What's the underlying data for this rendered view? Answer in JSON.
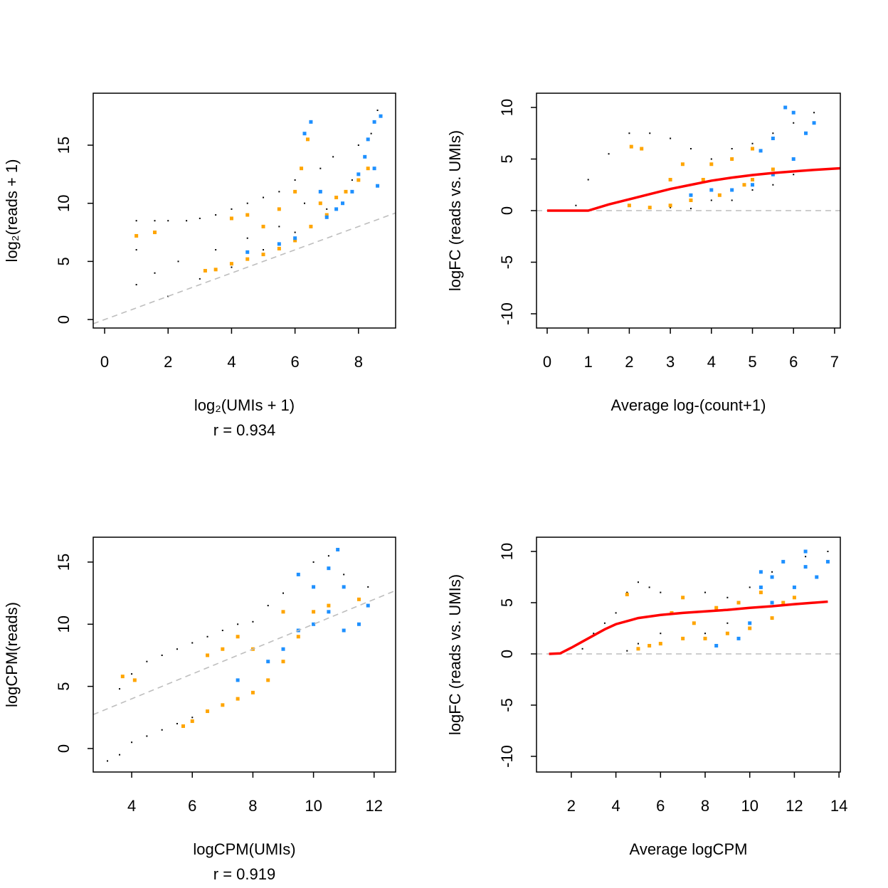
{
  "chart_data": [
    {
      "type": "scatter",
      "xlabel": "log₂(UMIs + 1)",
      "ylabel": "log₂(reads + 1)",
      "subtitle": "r = 0.934",
      "xlim": [
        -0.36,
        9.17
      ],
      "ylim": [
        -0.73,
        19.47
      ],
      "xticks": [
        0,
        2,
        4,
        6,
        8
      ],
      "yticks": [
        0,
        5,
        10,
        15
      ],
      "series": [
        {
          "color": "#000000",
          "marker": "point",
          "x": [
            1,
            1,
            1,
            1.58,
            1.58,
            2,
            2,
            2.32,
            2.58,
            3,
            3,
            3.5,
            3.5,
            4,
            4,
            4.5,
            4.5,
            5,
            5,
            5.5,
            5.5,
            6,
            6,
            6.3,
            6.8,
            7,
            7.2,
            7.8,
            8,
            8.4,
            8.6
          ],
          "values": [
            3,
            6,
            8.5,
            4,
            8.5,
            2,
            8.5,
            5,
            8.5,
            3.5,
            8.7,
            6,
            9,
            4.5,
            9.5,
            7,
            10,
            6,
            10.5,
            8,
            11,
            7.5,
            12,
            10,
            13,
            9.5,
            14,
            12,
            15,
            16,
            18
          ]
        },
        {
          "color": "#ffa500",
          "marker": "square",
          "x": [
            1,
            1.58,
            3.17,
            3.5,
            4,
            4,
            4.5,
            4.5,
            5,
            5,
            5.5,
            5.5,
            6,
            6,
            6.2,
            6.4,
            6.5,
            6.8,
            7,
            7.3,
            7.6,
            8,
            8.3
          ],
          "values": [
            7.2,
            7.5,
            4.2,
            4.3,
            4.8,
            8.7,
            5.2,
            9,
            5.6,
            8,
            6.1,
            9.5,
            6.8,
            11,
            13,
            15.5,
            8,
            10,
            9,
            10.5,
            11,
            12,
            13
          ]
        },
        {
          "color": "#1e90ff",
          "marker": "square",
          "x": [
            4.5,
            5.5,
            6,
            6.3,
            6.5,
            6.8,
            7,
            7.3,
            7.5,
            7.8,
            8,
            8.2,
            8.3,
            8.5,
            8.7,
            8.5,
            8.6
          ],
          "values": [
            5.8,
            6.5,
            7,
            16,
            17,
            11,
            8.8,
            9.5,
            10,
            11,
            12.5,
            14,
            15.5,
            17,
            17.5,
            13,
            11.5
          ]
        },
        {
          "color": "#bebebe",
          "marker": "dashed",
          "x": [
            -0.36,
            9.17
          ],
          "values": [
            -0.36,
            9.17
          ]
        }
      ]
    },
    {
      "type": "scatter",
      "xlabel": "Average log-(count+1)",
      "ylabel": "logFC (reads vs. UMIs)",
      "xlim": [
        -0.26,
        7.14
      ],
      "ylim": [
        -11.38,
        11.38
      ],
      "xticks": [
        0,
        1,
        2,
        3,
        4,
        5,
        6,
        7
      ],
      "yticks": [
        -10,
        -5,
        0,
        5,
        10
      ],
      "series": [
        {
          "color": "#000000",
          "marker": "point",
          "x": [
            0.7,
            1,
            1.5,
            2,
            2.5,
            3,
            3,
            3.5,
            3.5,
            4,
            4,
            4.5,
            4.5,
            5,
            5,
            5.5,
            5.5,
            6,
            6,
            6.5
          ],
          "values": [
            0.5,
            3,
            5.5,
            7.5,
            7.5,
            7,
            0.3,
            6,
            0.2,
            5,
            1,
            6,
            1,
            6.5,
            2,
            7.5,
            2.5,
            8.5,
            3.5,
            9.5
          ]
        },
        {
          "color": "#ffa500",
          "marker": "square",
          "x": [
            2.05,
            2.3,
            2,
            2.5,
            3,
            3,
            3.3,
            3.5,
            3.8,
            4,
            4.2,
            4.5,
            4.8,
            5,
            5,
            5.5
          ],
          "values": [
            6.2,
            6,
            0.5,
            0.3,
            0.5,
            3,
            4.5,
            1,
            3,
            4.5,
            1.5,
            5,
            2.5,
            6,
            3,
            4
          ]
        },
        {
          "color": "#1e90ff",
          "marker": "square",
          "x": [
            3.5,
            4,
            4.5,
            5,
            5.2,
            5.5,
            5.5,
            6,
            6,
            6.3,
            6.5,
            5.8
          ],
          "values": [
            1.5,
            2,
            2,
            2.5,
            5.8,
            3.5,
            7,
            5,
            9.5,
            7.5,
            8.5,
            10
          ]
        },
        {
          "color": "#bebebe",
          "marker": "dashed",
          "x": [
            -0.26,
            7.14
          ],
          "values": [
            0,
            0
          ]
        },
        {
          "color": "#ff0000",
          "marker": "line",
          "x": [
            0,
            0.5,
            1,
            1.5,
            2,
            2.5,
            3,
            3.5,
            4,
            4.5,
            5,
            5.5,
            6,
            6.5,
            7.14
          ],
          "values": [
            0,
            0,
            0,
            0.6,
            1.1,
            1.6,
            2.1,
            2.5,
            2.9,
            3.2,
            3.45,
            3.65,
            3.8,
            3.95,
            4.1
          ]
        }
      ]
    },
    {
      "type": "scatter",
      "xlabel": "logCPM(UMIs)",
      "ylabel": "logCPM(reads)",
      "subtitle": "r = 0.919",
      "xlim": [
        2.73,
        12.71
      ],
      "ylim": [
        -1.89,
        17.0
      ],
      "xticks": [
        4,
        6,
        8,
        10,
        12
      ],
      "yticks": [
        0,
        5,
        10,
        15
      ],
      "series": [
        {
          "color": "#000000",
          "marker": "point",
          "x": [
            3.2,
            3.6,
            3.6,
            4,
            4,
            4.5,
            4.5,
            5,
            5,
            5.5,
            5.5,
            6,
            6,
            6.5,
            7,
            7.5,
            8,
            8.5,
            9,
            9.5,
            10,
            10.5,
            11,
            11.5,
            11.8
          ],
          "values": [
            -1,
            4.8,
            -0.5,
            6,
            0.5,
            7,
            1,
            7.5,
            1.5,
            8,
            2,
            8.5,
            2.5,
            9,
            9.5,
            10,
            10.2,
            11.5,
            12.5,
            14,
            15,
            15.5,
            14,
            12,
            13
          ]
        },
        {
          "color": "#ffa500",
          "marker": "square",
          "x": [
            3.7,
            4.1,
            5.7,
            6,
            6.5,
            6.5,
            7,
            7,
            7.5,
            7.5,
            8,
            8,
            8.5,
            9,
            9,
            9.5,
            10,
            10.5,
            11.5
          ],
          "values": [
            5.8,
            5.5,
            1.8,
            2.2,
            7.5,
            3,
            3.5,
            8,
            4,
            9,
            4.5,
            8,
            5.5,
            11,
            7,
            9,
            11,
            11.5,
            12
          ]
        },
        {
          "color": "#1e90ff",
          "marker": "square",
          "x": [
            7.5,
            8.5,
            9,
            9.5,
            9.5,
            10,
            10,
            10.5,
            10.5,
            11,
            11,
            11.5,
            11.8,
            10.8
          ],
          "values": [
            5.5,
            7,
            8,
            9.5,
            14,
            10,
            13,
            11,
            14.5,
            9.5,
            13,
            10,
            11.5,
            16
          ]
        },
        {
          "color": "#bebebe",
          "marker": "dashed",
          "x": [
            2.73,
            12.71
          ],
          "values": [
            2.73,
            12.71
          ]
        }
      ]
    },
    {
      "type": "scatter",
      "xlabel": "Average logCPM",
      "ylabel": "logFC (reads vs. UMIs)",
      "xlim": [
        0.44,
        14.06
      ],
      "ylim": [
        -11.53,
        11.39
      ],
      "xticks": [
        2,
        4,
        6,
        8,
        10,
        12,
        14
      ],
      "yticks": [
        -10,
        -5,
        0,
        5,
        10
      ],
      "series": [
        {
          "color": "#000000",
          "marker": "point",
          "x": [
            2.5,
            3,
            3.5,
            4,
            4.5,
            4.5,
            5,
            5,
            5.5,
            6,
            6,
            7,
            7,
            8,
            8,
            9,
            9,
            10,
            11,
            12.5,
            13.5
          ],
          "values": [
            0.5,
            2,
            3,
            4,
            6,
            0.3,
            7,
            1,
            6.5,
            6,
            2,
            5.5,
            1.5,
            6,
            2,
            5.5,
            3,
            6.5,
            8,
            9.5,
            10
          ]
        },
        {
          "color": "#ffa500",
          "marker": "square",
          "x": [
            4.5,
            5,
            5.5,
            6,
            6.5,
            7,
            7,
            7.5,
            8,
            8.5,
            9,
            9.5,
            10,
            10.5,
            11,
            11.5,
            12
          ],
          "values": [
            5.8,
            0.5,
            0.8,
            1,
            4,
            5.5,
            1.5,
            3,
            1.5,
            4.5,
            2,
            5,
            2.5,
            6,
            3.5,
            5,
            5.5
          ]
        },
        {
          "color": "#1e90ff",
          "marker": "square",
          "x": [
            8.5,
            9.5,
            10,
            10.5,
            10.5,
            11,
            11,
            11.5,
            12,
            12.5,
            12.5,
            13,
            13.5
          ],
          "values": [
            0.8,
            1.5,
            3,
            6.5,
            8,
            5,
            7.5,
            9,
            6.5,
            8.5,
            10,
            7.5,
            9
          ]
        },
        {
          "color": "#bebebe",
          "marker": "dashed",
          "x": [
            0.44,
            14.06
          ],
          "values": [
            0,
            0
          ]
        },
        {
          "color": "#ff0000",
          "marker": "line",
          "x": [
            1,
            1.5,
            2,
            2.5,
            3,
            3.5,
            4,
            4.5,
            5,
            6,
            7,
            8,
            9,
            10,
            11,
            12,
            13.5
          ],
          "values": [
            0,
            0.05,
            0.6,
            1.2,
            1.8,
            2.4,
            2.9,
            3.2,
            3.5,
            3.8,
            4.0,
            4.15,
            4.3,
            4.5,
            4.65,
            4.85,
            5.1
          ]
        }
      ]
    }
  ]
}
